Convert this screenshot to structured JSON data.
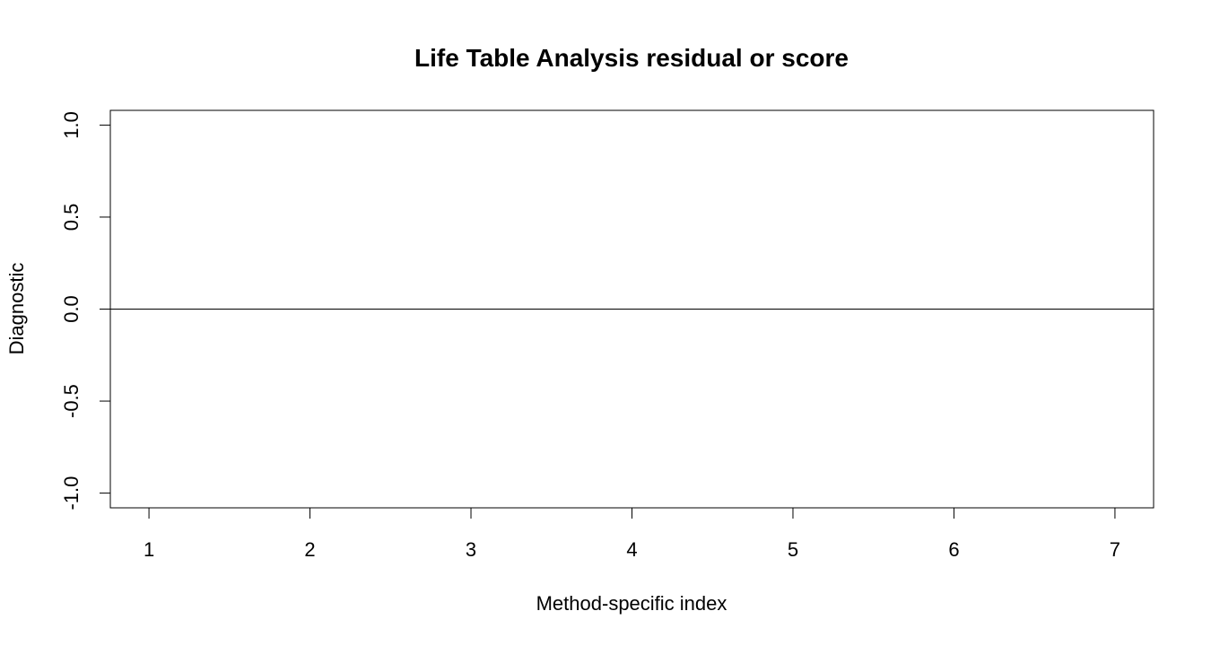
{
  "chart_data": {
    "type": "scatter",
    "title": "Life Table Analysis residual or score",
    "xlabel": "Method-specific index",
    "ylabel": "Diagnostic",
    "xlim": [
      0.76,
      7.24
    ],
    "ylim": [
      -1.08,
      1.08
    ],
    "x_ticks": [
      1,
      2,
      3,
      4,
      5,
      6,
      7
    ],
    "x_tick_labels": [
      "1",
      "2",
      "3",
      "4",
      "5",
      "6",
      "7"
    ],
    "y_ticks": [
      -1.0,
      -0.5,
      0.0,
      0.5,
      1.0
    ],
    "y_tick_labels": [
      "-1.0",
      "-0.5",
      "0.0",
      "0.5",
      "1.0"
    ],
    "reference_line_y": 0,
    "grid": false,
    "series": [
      {
        "x": [],
        "y": []
      }
    ]
  }
}
